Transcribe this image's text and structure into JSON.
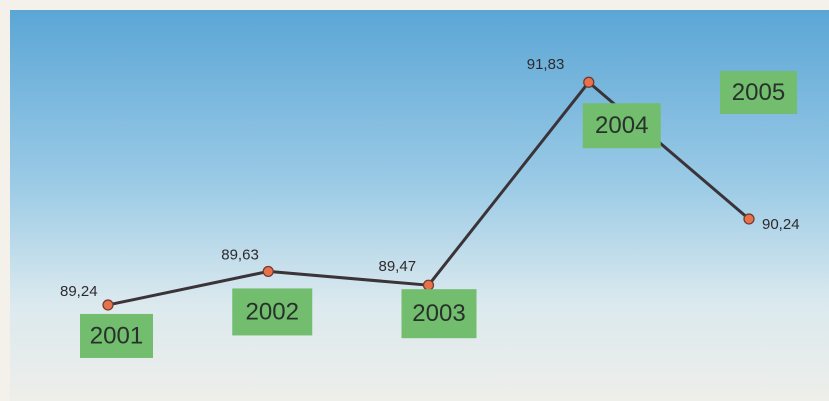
{
  "chart_data": {
    "type": "line",
    "categories": [
      "2001",
      "2002",
      "2003",
      "2004",
      "2005"
    ],
    "values": [
      89.24,
      89.63,
      89.47,
      91.83,
      90.24
    ],
    "value_labels": [
      "89,24",
      "89,63",
      "89,47",
      "91,83",
      "90,24"
    ],
    "color": "#3a3438",
    "marker_color": "#e8704a",
    "label_color": "#72bd6e",
    "ylim": [
      88.6,
      92.67
    ]
  }
}
